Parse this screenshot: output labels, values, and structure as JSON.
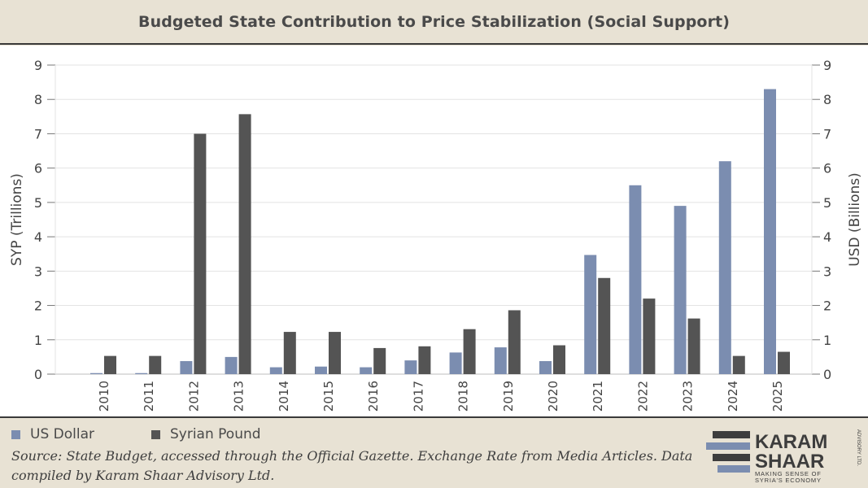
{
  "title": "Budgeted State Contribution to Price Stabilization (Social Support)",
  "legend": [
    {
      "label": "US Dollar",
      "color": "#7b8db0"
    },
    {
      "label": "Syrian Pound",
      "color": "#545454"
    }
  ],
  "source": "Source: State Budget, accessed through the Official Gazette. Exchange Rate from Media Articles. Data compiled by Karam Shaar Advisory Ltd.",
  "logo": {
    "line1": "KARAM",
    "line2": "SHAAR",
    "tagline1": "MAKING SENSE OF",
    "tagline2": "SYRIA'S ECONOMY",
    "side": "ADVISORY LTD."
  },
  "chart_data": {
    "type": "bar",
    "categories": [
      "2010",
      "2011",
      "2012",
      "2013",
      "2014",
      "2015",
      "2016",
      "2017",
      "2018",
      "2019",
      "2020",
      "2021",
      "2022",
      "2023",
      "2024",
      "2025"
    ],
    "series": [
      {
        "name": "US Dollar",
        "axis": "right",
        "color": "#7b8db0",
        "values": [
          0.03,
          0.03,
          0.38,
          0.5,
          0.2,
          0.22,
          0.2,
          0.4,
          0.63,
          0.78,
          0.38,
          3.47,
          5.5,
          4.9,
          6.2,
          8.3
        ]
      },
      {
        "name": "Syrian Pound",
        "axis": "left",
        "color": "#545454",
        "values": [
          0.53,
          0.53,
          7.0,
          7.57,
          1.23,
          1.23,
          0.76,
          0.81,
          1.31,
          1.86,
          0.84,
          2.8,
          2.2,
          1.62,
          0.53,
          0.65
        ]
      }
    ],
    "ylabel_left": "SYP (Trillions)",
    "ylabel_right": "USD (Billions)",
    "ylim_left": [
      0,
      9
    ],
    "ylim_right": [
      0,
      9
    ],
    "yticks": [
      "0",
      "1",
      "2",
      "3",
      "4",
      "5",
      "6",
      "7",
      "8",
      "9"
    ],
    "grid": true
  }
}
